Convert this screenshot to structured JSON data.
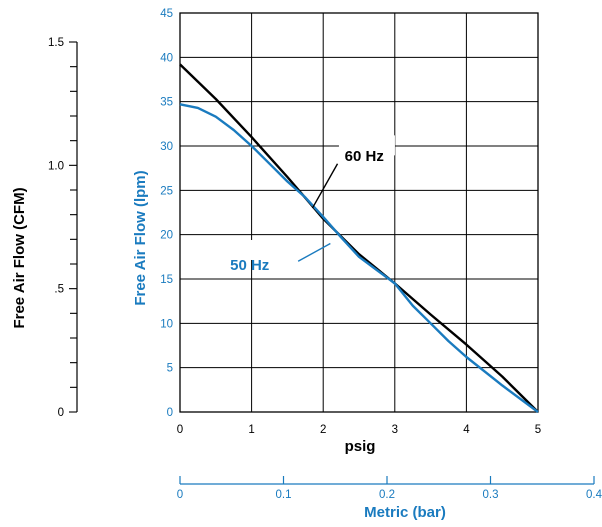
{
  "chart_data": {
    "type": "line",
    "xlabel": "psig",
    "ylabel": "Free Air Flow (lpm)",
    "x_ticks": [
      "0",
      "1",
      "2",
      "3",
      "4",
      "5"
    ],
    "y_ticks": [
      "0",
      "5",
      "10",
      "15",
      "20",
      "25",
      "30",
      "35",
      "40",
      "45"
    ],
    "xlim": [
      0,
      5
    ],
    "ylim": [
      0,
      45
    ],
    "grid": true,
    "secondary_y": {
      "label": "Free Air Flow (CFM)",
      "ticks": [
        {
          "value": 0,
          "label": "0"
        },
        {
          "value": 0.5,
          "label": ".5"
        },
        {
          "value": 1.0,
          "label": "1.0"
        },
        {
          "value": 1.5,
          "label": "1.5"
        }
      ],
      "minor_step": 0.1,
      "range": [
        0,
        1.5
      ]
    },
    "secondary_x": {
      "label": "Metric (bar)",
      "ticks": [
        "0",
        "0.1",
        "0.2",
        "0.3",
        "0.4"
      ],
      "range": [
        0,
        0.4
      ]
    },
    "series": [
      {
        "name": "60 Hz",
        "color": "#000000",
        "x": [
          0,
          0.5,
          1.0,
          1.5,
          2.0,
          2.5,
          3.0,
          3.5,
          4.0,
          4.5,
          5.0
        ],
        "y": [
          39.2,
          35.3,
          31.0,
          26.5,
          21.8,
          17.8,
          14.5,
          11.0,
          7.6,
          4.0,
          0
        ]
      },
      {
        "name": "50 Hz",
        "color": "#1a7bbf",
        "x": [
          0,
          0.25,
          0.5,
          0.75,
          1.0,
          1.25,
          1.5,
          1.75,
          2.0,
          2.25,
          2.5,
          2.75,
          3.0,
          3.25,
          3.5,
          3.75,
          4.0,
          4.5,
          5.0
        ],
        "y": [
          34.7,
          34.3,
          33.3,
          31.8,
          30.0,
          28.0,
          26.0,
          24.2,
          22.0,
          19.7,
          17.5,
          16.0,
          14.5,
          12.0,
          10.0,
          8.0,
          6.2,
          3.0,
          0
        ]
      }
    ]
  },
  "colors": {
    "primary": "#000000",
    "accent": "#1a7bbf",
    "grid": "#000000"
  }
}
